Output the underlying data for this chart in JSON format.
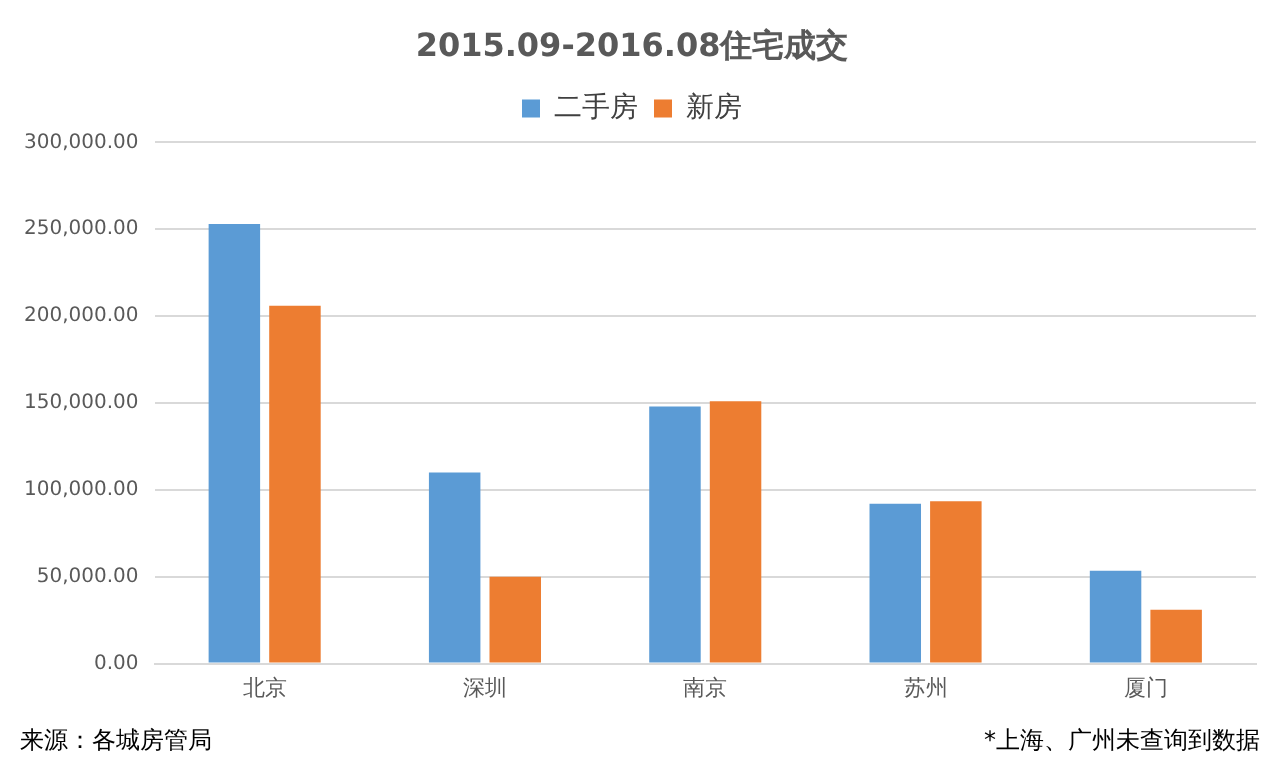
{
  "chart_data": {
    "type": "bar",
    "title": "2015.09-2016.08住宅成交",
    "categories": [
      "北京",
      "深圳",
      "南京",
      "苏州",
      "厦门"
    ],
    "series": [
      {
        "name": "二手房",
        "color": "#5b9bd5",
        "values": [
          253000,
          110000,
          148000,
          92000,
          53500
        ]
      },
      {
        "name": "新房",
        "color": "#ed7d31",
        "values": [
          206000,
          50000,
          151000,
          93500,
          31000
        ]
      }
    ],
    "ylim": [
      0,
      300000
    ],
    "yticks": [
      {
        "value": 0,
        "label": "0.00"
      },
      {
        "value": 50000,
        "label": "50,000.00"
      },
      {
        "value": 100000,
        "label": "100,000.00"
      },
      {
        "value": 150000,
        "label": "150,000.00"
      },
      {
        "value": 200000,
        "label": "200,000.00"
      },
      {
        "value": 250000,
        "label": "250,000.00"
      },
      {
        "value": 300000,
        "label": "300,000.00"
      }
    ],
    "grid": "y",
    "legend": "top",
    "annotations": [
      "来源：各城房管局",
      "*上海、广州未查询到数据"
    ]
  }
}
